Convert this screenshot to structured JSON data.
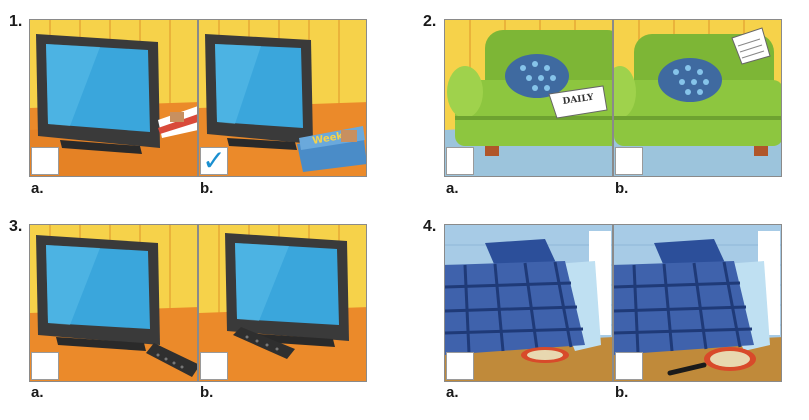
{
  "exercises": [
    {
      "number": "1.",
      "options": [
        {
          "letter": "a.",
          "checked": false,
          "mark": ""
        },
        {
          "letter": "b.",
          "checked": true,
          "mark": "✓"
        }
      ],
      "magazine_text": "Weekly"
    },
    {
      "number": "2.",
      "options": [
        {
          "letter": "a.",
          "checked": false,
          "mark": ""
        },
        {
          "letter": "b.",
          "checked": false,
          "mark": ""
        }
      ],
      "newspaper_text": "DAILY"
    },
    {
      "number": "3.",
      "options": [
        {
          "letter": "a.",
          "checked": false,
          "mark": ""
        },
        {
          "letter": "b.",
          "checked": false,
          "mark": ""
        }
      ]
    },
    {
      "number": "4.",
      "options": [
        {
          "letter": "a.",
          "checked": false,
          "mark": ""
        },
        {
          "letter": "b.",
          "checked": false,
          "mark": ""
        }
      ]
    }
  ],
  "colors": {
    "check_mark": "#1a8fd0",
    "wall_yellow": "#f6d24a",
    "floor_orange": "#eb8a2a",
    "sofa_green": "#8dc63f",
    "bed_blue": "#3f62ac",
    "screen_blue": "#3aa6dc"
  }
}
